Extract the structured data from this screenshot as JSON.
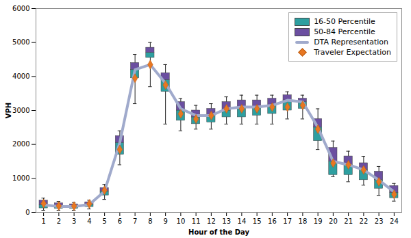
{
  "chart_data": {
    "type": "box",
    "xlabel": "Hour of the Day",
    "ylabel": "VPH",
    "x": [
      1,
      2,
      3,
      4,
      5,
      6,
      7,
      8,
      9,
      10,
      11,
      12,
      13,
      14,
      15,
      16,
      17,
      18,
      19,
      20,
      21,
      22,
      23,
      24
    ],
    "xlim": [
      0.5,
      24.5
    ],
    "xticks": [
      1,
      2,
      3,
      4,
      5,
      6,
      7,
      8,
      9,
      10,
      11,
      12,
      13,
      14,
      15,
      16,
      17,
      18,
      19,
      20,
      21,
      22,
      23,
      24
    ],
    "ylim": [
      0,
      6000
    ],
    "yticks": [
      0,
      1000,
      2000,
      3000,
      4000,
      5000,
      6000
    ],
    "grid": false,
    "legend": "upper right",
    "whisker_low": [
      60,
      60,
      60,
      100,
      380,
      1400,
      3200,
      3700,
      2600,
      2400,
      2450,
      2450,
      2600,
      2600,
      2600,
      2600,
      2750,
      2750,
      1850,
      1050,
      900,
      800,
      500,
      330
    ],
    "whisker_high": [
      420,
      320,
      290,
      360,
      820,
      2400,
      4650,
      5000,
      4350,
      3350,
      3150,
      3200,
      3400,
      3450,
      3450,
      3450,
      3550,
      3450,
      3050,
      2100,
      1800,
      1650,
      1350,
      850
    ],
    "series": [
      {
        "name": "16-50 Percentile",
        "type": "box",
        "color": "#2E9FA0",
        "low": [
          120,
          110,
          110,
          160,
          500,
          1700,
          3950,
          4550,
          3550,
          2700,
          2600,
          2650,
          2800,
          2800,
          2850,
          2900,
          3000,
          3050,
          2100,
          1100,
          1100,
          950,
          700,
          420
        ],
        "high": [
          220,
          170,
          170,
          230,
          620,
          2050,
          4200,
          4700,
          3900,
          3000,
          2800,
          2850,
          3000,
          3100,
          3100,
          3150,
          3300,
          3250,
          2500,
          1500,
          1400,
          1250,
          950,
          580
        ]
      },
      {
        "name": "50-84 Percentile",
        "type": "box",
        "color": "#6B4FA0",
        "low": [
          220,
          170,
          170,
          230,
          620,
          2050,
          4200,
          4700,
          3900,
          3000,
          2800,
          2850,
          3000,
          3100,
          3100,
          3150,
          3300,
          3250,
          2500,
          1500,
          1400,
          1250,
          950,
          580
        ],
        "high": [
          350,
          270,
          240,
          300,
          720,
          2250,
          4400,
          4850,
          4100,
          3250,
          3000,
          3050,
          3250,
          3300,
          3300,
          3350,
          3450,
          3350,
          2750,
          1900,
          1650,
          1450,
          1200,
          780
        ]
      },
      {
        "name": "DTA Representation",
        "type": "line",
        "color": "#A0AACC",
        "values": [
          220,
          170,
          170,
          230,
          620,
          2050,
          4200,
          4350,
          3800,
          3050,
          2850,
          2850,
          3050,
          3100,
          3100,
          3150,
          3300,
          3250,
          2500,
          1500,
          1400,
          1250,
          950,
          600
        ]
      },
      {
        "name": "Traveler Expectation",
        "type": "scatter",
        "marker": "diamond",
        "color": "#E87722",
        "values": [
          260,
          190,
          185,
          250,
          650,
          1850,
          3950,
          4350,
          3750,
          2900,
          2750,
          2850,
          3050,
          3050,
          3050,
          3100,
          3100,
          3150,
          2450,
          1450,
          1400,
          1250,
          900,
          530
        ]
      }
    ]
  }
}
